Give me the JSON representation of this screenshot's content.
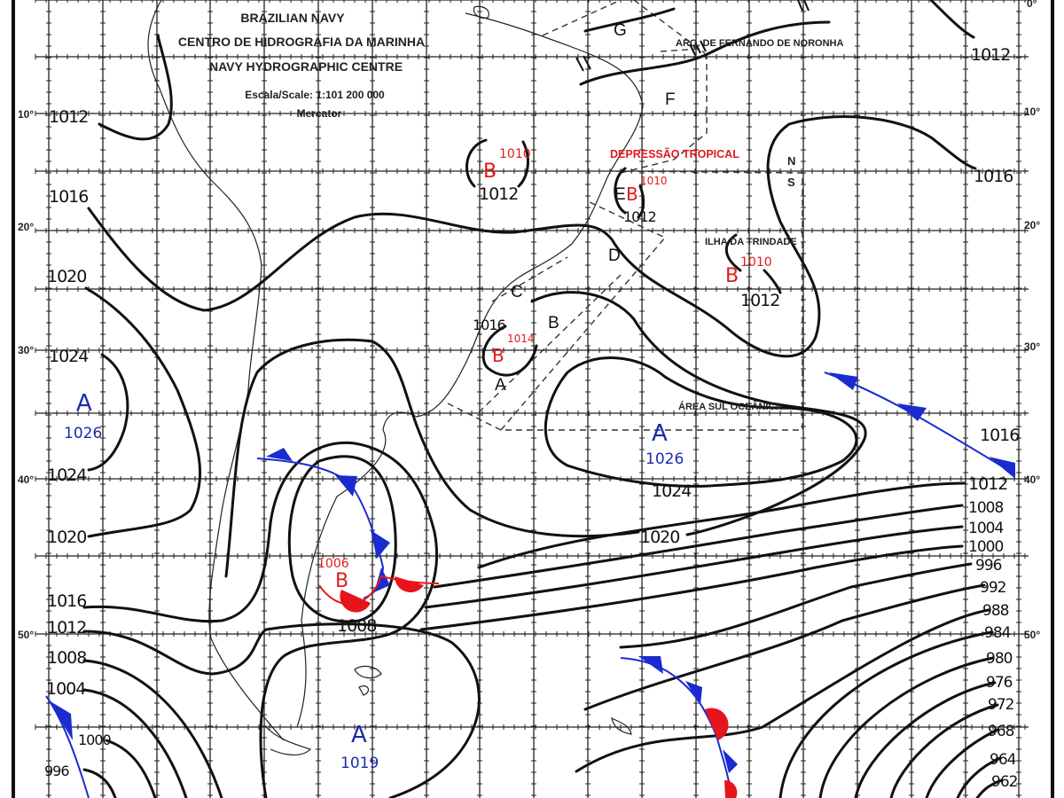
{
  "header": {
    "line1": "BRAZILIAN NAVY",
    "line2": "CENTRO DE HIDROGRAFIA DA MARINHA",
    "line3": "NAVY HYDROGRAPHIC CENTRE",
    "scale": "Escala/Scale: 1:101 200 000",
    "projection": "Mercator"
  },
  "latitude_labels": {
    "left": [
      "10°",
      "20°",
      "30°",
      "40°",
      "50°"
    ],
    "right": [
      "0°",
      "10°",
      "20°",
      "30°",
      "40°",
      "50°"
    ]
  },
  "places": {
    "noronha": "ARQ. DE FERNANDO DE NORONHA",
    "trindade": "ILHA DA TRINDADE",
    "sul_oceanica": "ÁREA SUL OCEÂNICA",
    "tropical_depression": "DEPRESSÃO TROPICAL",
    "north": "N",
    "south": "S"
  },
  "areas": [
    "A",
    "B",
    "C",
    "D",
    "E",
    "F",
    "G"
  ],
  "pressure_centers": [
    {
      "type": "A",
      "value": "1026"
    },
    {
      "type": "A",
      "value": "1026"
    },
    {
      "type": "A",
      "value": "1019"
    },
    {
      "type": "B",
      "value": "1010"
    },
    {
      "type": "B",
      "value": "1010"
    },
    {
      "type": "B",
      "value": "1014"
    },
    {
      "type": "B",
      "value": "1010"
    },
    {
      "type": "B",
      "value": "1006"
    }
  ],
  "isobar_labels": {
    "left": [
      "1012",
      "1016",
      "1020",
      "1024",
      "1024",
      "1020",
      "1016",
      "1012",
      "1008",
      "1004",
      "1000",
      "996"
    ],
    "right": [
      "1012",
      "1016",
      "1016",
      "1012",
      "1008",
      "1004",
      "1000",
      "996",
      "992",
      "988",
      "984",
      "980",
      "976",
      "972",
      "968",
      "964",
      "962"
    ],
    "interior": [
      "1012",
      "1012",
      "1016",
      "1012",
      "1024",
      "1020",
      "1008"
    ]
  },
  "colors": {
    "high_pressure": "#1a2bb0",
    "low_pressure": "#e01b1b",
    "cold_front": "#1a2bd0",
    "warm_front": "#e8141b"
  }
}
